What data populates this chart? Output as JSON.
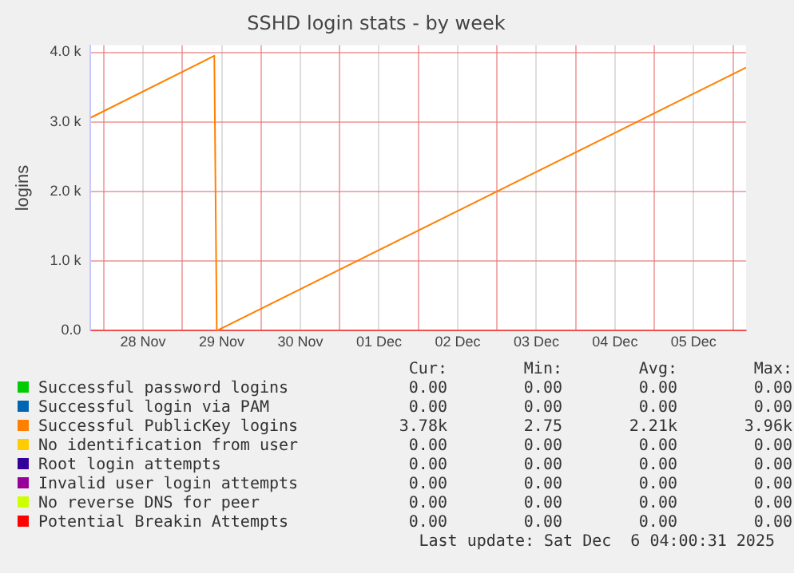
{
  "chart_data": {
    "type": "line",
    "title": "SSHD login stats - by week",
    "ylabel": "logins",
    "xlim": [
      "2025-11-27T20:00",
      "2025-12-06T04:00"
    ],
    "xticks": [
      {
        "value": "2025-11-28T00:00",
        "label": null
      },
      {
        "value": "2025-11-28T12:00",
        "label": "28 Nov"
      },
      {
        "value": "2025-11-29T00:00",
        "label": null
      },
      {
        "value": "2025-11-29T12:00",
        "label": "29 Nov"
      },
      {
        "value": "2025-11-30T00:00",
        "label": null
      },
      {
        "value": "2025-11-30T12:00",
        "label": "30 Nov"
      },
      {
        "value": "2025-12-01T00:00",
        "label": null
      },
      {
        "value": "2025-12-01T12:00",
        "label": "01 Dec"
      },
      {
        "value": "2025-12-02T00:00",
        "label": null
      },
      {
        "value": "2025-12-02T12:00",
        "label": "02 Dec"
      },
      {
        "value": "2025-12-03T00:00",
        "label": null
      },
      {
        "value": "2025-12-03T12:00",
        "label": "03 Dec"
      },
      {
        "value": "2025-12-04T00:00",
        "label": null
      },
      {
        "value": "2025-12-04T12:00",
        "label": "04 Dec"
      },
      {
        "value": "2025-12-05T00:00",
        "label": null
      },
      {
        "value": "2025-12-05T12:00",
        "label": "05 Dec"
      },
      {
        "value": "2025-12-06T00:00",
        "label": null
      }
    ],
    "ylim": [
      0,
      4100
    ],
    "yticks": [
      {
        "value": 0,
        "label": "0.0"
      },
      {
        "value": 1000,
        "label": "1.0 k"
      },
      {
        "value": 2000,
        "label": "2.0 k"
      },
      {
        "value": 3000,
        "label": "3.0 k"
      },
      {
        "value": 4000,
        "label": "4.0 k"
      }
    ],
    "grid": true,
    "legend": "bottom",
    "marker": "none",
    "line_style": "solid",
    "series": [
      {
        "name": "Successful password logins",
        "color": "#00cc00",
        "values": [
          null
        ]
      },
      {
        "name": "Successful login via PAM",
        "color": "#0066b3",
        "values": [
          null
        ]
      },
      {
        "name": "Successful PublicKey logins",
        "color": "#ff8000",
        "x": [
          "2025-11-27T20:00",
          "2025-11-29T09:45",
          "2025-11-29T10:30",
          "2025-12-06T04:00"
        ],
        "values": [
          3060,
          3950,
          0,
          3780
        ]
      },
      {
        "name": "No identification from user",
        "color": "#ffcc00",
        "values": [
          null
        ]
      },
      {
        "name": "Root login attempts",
        "color": "#330099",
        "values": [
          null
        ]
      },
      {
        "name": "Invalid user login attempts",
        "color": "#990099",
        "values": [
          null
        ]
      },
      {
        "name": "No reverse DNS for peer",
        "color": "#ccff00",
        "values": [
          null
        ]
      },
      {
        "name": "Potential Breakin Attempts",
        "color": "#ff0000",
        "x": [
          "2025-11-27T20:00",
          "2025-12-06T04:00"
        ],
        "values": [
          0,
          0
        ]
      }
    ],
    "annotations": [
      "Cur:",
      "Min:",
      "Avg:",
      "Max:",
      "0.00",
      "0.00",
      "0.00",
      "0.00",
      "0.00",
      "0.00",
      "0.00",
      "0.00",
      "3.78k",
      "2.75",
      "2.21k",
      "3.96k",
      "0.00",
      "0.00",
      "0.00",
      "0.00",
      "0.00",
      "0.00",
      "0.00",
      "0.00",
      "0.00",
      "0.00",
      "0.00",
      "0.00",
      "0.00",
      "0.00",
      "0.00",
      "0.00",
      "0.00",
      "0.00",
      "0.00",
      "0.00",
      "Last update: Sat Dec  6 04:00:31 2025"
    ]
  }
}
